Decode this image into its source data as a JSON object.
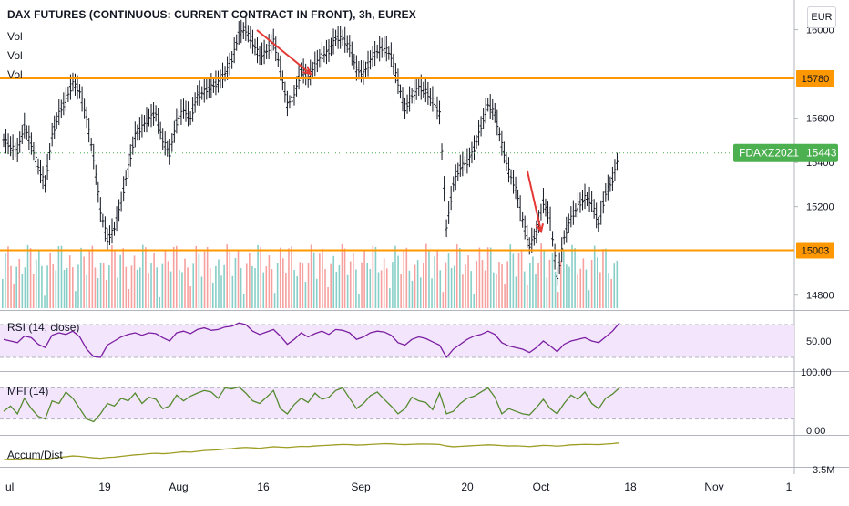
{
  "header": {
    "symbol_title": "DAX FUTURES (CONTINUOUS: CURRENT CONTRACT IN FRONT), 3h, EUREX",
    "vol_labels": [
      "Vol",
      "Vol",
      "Vol"
    ],
    "currency_button": "EUR"
  },
  "panes": {
    "rsi_label": "RSI (14, close)",
    "mfi_label": "MFI (14)",
    "ad_label": "Accum/Dist"
  },
  "colors": {
    "level_line": "#ff9800",
    "price_tag": "#4caf50",
    "up_volume": "#26a69a",
    "down_volume": "#ef5350",
    "rsi_line": "#7b1fa2",
    "mfi_line": "#558b2f",
    "ad_line": "#9e9d24",
    "band_fill": "#f3e5fc",
    "arrow": "#e53935",
    "bars": "#131722"
  },
  "chart_data": {
    "type": "ohlc",
    "price_axis": {
      "ticks": [
        16000,
        15600,
        15400,
        15200,
        14800
      ],
      "tick_labels": [
        "16000",
        "15600",
        "15400",
        "15200",
        "14800"
      ],
      "range": [
        14700,
        16060
      ]
    },
    "time_axis": {
      "ticks": [
        "ul",
        "19",
        "Aug",
        "16",
        "Sep",
        "20",
        "Oct",
        "18",
        "Nov",
        "1"
      ]
    },
    "horizontal_levels": [
      {
        "value": 15780,
        "label": "15780"
      },
      {
        "value": 15003,
        "label": "15003"
      }
    ],
    "last_price": {
      "symbol": "FDAXZ2021",
      "value": 15443,
      "label": "15443"
    },
    "price_series": [
      15500,
      15470,
      15450,
      15560,
      15480,
      15380,
      15300,
      15520,
      15620,
      15680,
      15760,
      15720,
      15600,
      15420,
      15180,
      15050,
      15100,
      15220,
      15380,
      15520,
      15560,
      15600,
      15620,
      15500,
      15440,
      15580,
      15640,
      15600,
      15700,
      15720,
      15740,
      15760,
      15800,
      15860,
      15980,
      16000,
      15940,
      15880,
      15900,
      15950,
      15820,
      15660,
      15700,
      15820,
      15780,
      15840,
      15880,
      15900,
      15960,
      15960,
      15920,
      15820,
      15800,
      15860,
      15900,
      15920,
      15880,
      15760,
      15640,
      15700,
      15740,
      15720,
      15680,
      15620,
      15100,
      15300,
      15380,
      15400,
      15460,
      15560,
      15660,
      15620,
      15480,
      15360,
      15280,
      15140,
      15020,
      15080,
      15220,
      15140,
      14880,
      15060,
      15150,
      15200,
      15240,
      15220,
      15120,
      15260,
      15320,
      15440
    ],
    "volume_axis": {
      "ticks": []
    },
    "rsi": {
      "label": "RSI (14, close)",
      "axis_ticks": [
        50.0
      ],
      "axis_tick_labels": [
        "50.00"
      ],
      "band": [
        30,
        70
      ],
      "values": [
        52,
        50,
        48,
        56,
        54,
        46,
        42,
        57,
        60,
        58,
        62,
        55,
        40,
        31,
        30,
        45,
        50,
        55,
        58,
        60,
        57,
        60,
        59,
        54,
        50,
        60,
        62,
        59,
        64,
        66,
        63,
        64,
        67,
        68,
        72,
        70,
        62,
        58,
        61,
        64,
        56,
        46,
        52,
        60,
        55,
        59,
        62,
        58,
        64,
        63,
        60,
        52,
        55,
        60,
        62,
        61,
        57,
        48,
        45,
        52,
        55,
        53,
        49,
        45,
        30,
        40,
        46,
        52,
        56,
        58,
        62,
        58,
        48,
        44,
        42,
        40,
        36,
        42,
        50,
        44,
        37,
        46,
        50,
        52,
        54,
        50,
        48,
        55,
        62,
        72
      ]
    },
    "mfi": {
      "label": "MFI (14)",
      "axis_ticks": [
        100.0,
        0.0
      ],
      "axis_tick_labels": [
        "100.00",
        "0.00"
      ],
      "band": [
        20,
        80
      ],
      "values": [
        35,
        45,
        30,
        60,
        40,
        25,
        20,
        55,
        50,
        72,
        60,
        40,
        20,
        15,
        30,
        50,
        45,
        60,
        55,
        70,
        50,
        62,
        58,
        40,
        45,
        66,
        55,
        64,
        70,
        75,
        72,
        60,
        80,
        78,
        82,
        70,
        55,
        50,
        62,
        75,
        40,
        30,
        48,
        60,
        52,
        70,
        58,
        62,
        75,
        80,
        60,
        40,
        50,
        65,
        72,
        58,
        45,
        30,
        40,
        62,
        55,
        52,
        38,
        70,
        30,
        35,
        50,
        60,
        64,
        72,
        80,
        62,
        30,
        40,
        35,
        30,
        28,
        42,
        58,
        40,
        30,
        50,
        66,
        58,
        72,
        50,
        40,
        60,
        68,
        80
      ]
    },
    "accum_dist": {
      "label": "Accum/Dist",
      "axis_tick_labels": [
        "3.5M"
      ],
      "values": [
        -3.4,
        -3.3,
        -3.35,
        -3.2,
        -3.25,
        -3.3,
        -3.35,
        -3.2,
        -3.1,
        -3.0,
        -2.9,
        -2.95,
        -3.05,
        -3.15,
        -3.2,
        -3.1,
        -3.05,
        -2.95,
        -2.85,
        -2.75,
        -2.7,
        -2.6,
        -2.55,
        -2.6,
        -2.55,
        -2.45,
        -2.35,
        -2.4,
        -2.3,
        -2.2,
        -2.15,
        -2.1,
        -2.0,
        -1.95,
        -1.85,
        -1.8,
        -1.85,
        -1.9,
        -1.8,
        -1.7,
        -1.75,
        -1.8,
        -1.72,
        -1.65,
        -1.68,
        -1.6,
        -1.55,
        -1.5,
        -1.45,
        -1.4,
        -1.42,
        -1.48,
        -1.45,
        -1.4,
        -1.35,
        -1.3,
        -1.32,
        -1.38,
        -1.42,
        -1.38,
        -1.35,
        -1.34,
        -1.36,
        -1.4,
        -1.6,
        -1.7,
        -1.65,
        -1.6,
        -1.55,
        -1.5,
        -1.45,
        -1.48,
        -1.55,
        -1.6,
        -1.58,
        -1.62,
        -1.68,
        -1.6,
        -1.52,
        -1.55,
        -1.62,
        -1.55,
        -1.45,
        -1.42,
        -1.38,
        -1.4,
        -1.42,
        -1.35,
        -1.3,
        -1.2
      ]
    }
  }
}
